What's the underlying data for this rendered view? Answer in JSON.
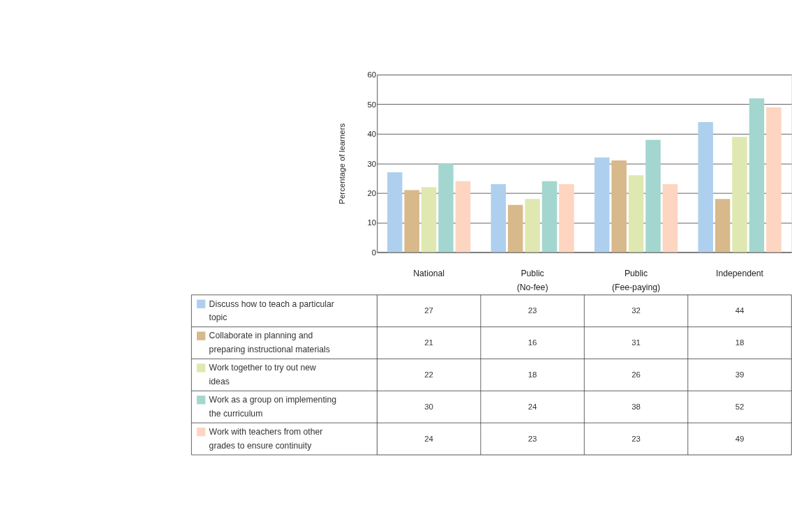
{
  "chart_data": {
    "type": "bar",
    "ylabel": "Percentage of learners",
    "categories": [
      "National",
      "Public (No-fee)",
      "Public (Fee-paying)",
      "Independent"
    ],
    "series": [
      {
        "name": "Discuss how to teach a particular topic",
        "color": "#aed0ee",
        "values": [
          27,
          23,
          32,
          44
        ]
      },
      {
        "name": "Collaborate in planning and preparing instructional materials",
        "color": "#d8b98c",
        "values": [
          21,
          16,
          31,
          18
        ]
      },
      {
        "name": "Work together to try out new ideas",
        "color": "#dfe8b0",
        "values": [
          22,
          18,
          26,
          39
        ]
      },
      {
        "name": "Work as a group on implementing the curriculum",
        "color": "#a3d6ce",
        "values": [
          30,
          24,
          38,
          52
        ]
      },
      {
        "name": "Work with teachers from other grades to ensure continuity",
        "color": "#fdd5c0",
        "values": [
          24,
          23,
          23,
          49
        ]
      }
    ],
    "ylim": [
      0,
      60
    ],
    "yticks": [
      0,
      10,
      20,
      30,
      40,
      50,
      60
    ],
    "grid": "y",
    "legend": "bottom",
    "data_labels": true
  }
}
